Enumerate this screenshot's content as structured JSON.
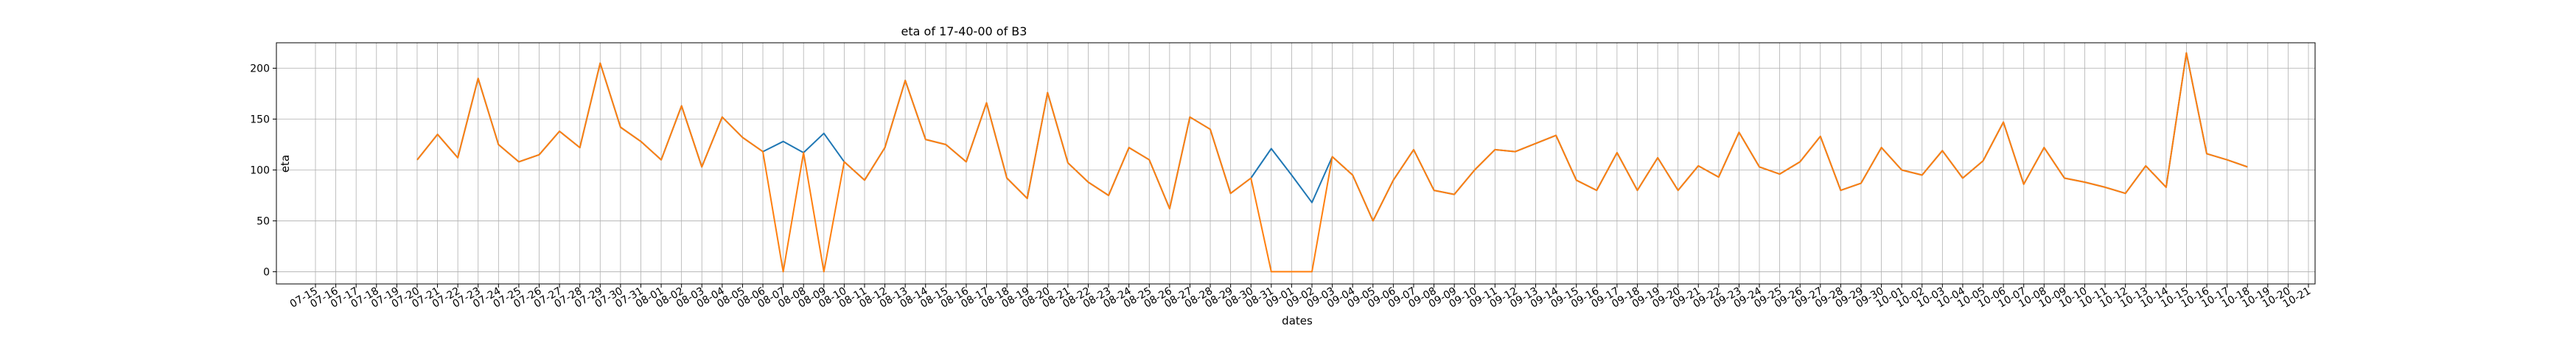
{
  "chart_data": {
    "type": "line",
    "title": "eta of 17-40-00 of B3",
    "xlabel": "dates",
    "ylabel": "eta",
    "ylim": [
      -12,
      225
    ],
    "yticks": [
      0,
      50,
      100,
      150,
      200
    ],
    "grid": true,
    "x": [
      "07-15",
      "07-16",
      "07-17",
      "07-18",
      "07-19",
      "07-20",
      "07-21",
      "07-22",
      "07-23",
      "07-24",
      "07-25",
      "07-26",
      "07-27",
      "07-28",
      "07-29",
      "07-30",
      "07-31",
      "08-01",
      "08-02",
      "08-03",
      "08-04",
      "08-05",
      "08-06",
      "08-07",
      "08-08",
      "08-09",
      "08-10",
      "08-11",
      "08-12",
      "08-13",
      "08-14",
      "08-15",
      "08-16",
      "08-17",
      "08-18",
      "08-19",
      "08-20",
      "08-21",
      "08-22",
      "08-23",
      "08-24",
      "08-25",
      "08-26",
      "08-27",
      "08-28",
      "08-29",
      "08-30",
      "08-31",
      "09-01",
      "09-02",
      "09-03",
      "09-04",
      "09-05",
      "09-06",
      "09-07",
      "09-08",
      "09-09",
      "09-10",
      "09-11",
      "09-12",
      "09-13",
      "09-14",
      "09-15",
      "09-16",
      "09-17",
      "09-18",
      "09-19",
      "09-20",
      "09-21",
      "09-22",
      "09-23",
      "09-24",
      "09-25",
      "09-26",
      "09-27",
      "09-28",
      "09-29",
      "09-30",
      "10-01",
      "10-02",
      "10-03",
      "10-04",
      "10-05",
      "10-06",
      "10-07",
      "10-08",
      "10-09",
      "10-10",
      "10-11",
      "10-12",
      "10-13",
      "10-14",
      "10-15",
      "10-16",
      "10-17",
      "10-18",
      "10-19",
      "10-20",
      "10-21"
    ],
    "series": [
      {
        "color": "#1f77b4",
        "values": [
          null,
          null,
          null,
          null,
          null,
          110,
          135,
          112,
          190,
          125,
          108,
          115,
          138,
          122,
          205,
          142,
          128,
          110,
          163,
          103,
          152,
          132,
          118,
          128,
          117,
          136,
          108,
          90,
          122,
          188,
          130,
          125,
          108,
          166,
          92,
          72,
          176,
          107,
          88,
          75,
          122,
          110,
          62,
          152,
          140,
          77,
          92,
          121,
          95,
          68,
          113,
          95,
          50,
          90,
          120,
          80,
          76,
          100,
          120,
          118,
          126,
          134,
          90,
          80,
          117,
          80,
          112,
          80,
          104,
          93,
          137,
          103,
          96,
          108,
          133,
          80,
          87,
          122,
          100,
          95,
          119,
          92,
          109,
          147,
          86,
          122,
          92,
          88,
          83,
          77,
          104,
          83,
          215,
          116,
          110,
          103,
          null,
          null,
          null
        ]
      },
      {
        "color": "#ff7f0e",
        "values": [
          null,
          null,
          null,
          null,
          null,
          110,
          135,
          112,
          190,
          125,
          108,
          115,
          138,
          122,
          205,
          142,
          128,
          110,
          163,
          103,
          152,
          132,
          118,
          0,
          117,
          0,
          108,
          90,
          122,
          188,
          130,
          125,
          108,
          166,
          92,
          72,
          176,
          107,
          88,
          75,
          122,
          110,
          62,
          152,
          140,
          77,
          92,
          0,
          0,
          0,
          113,
          95,
          50,
          90,
          120,
          80,
          76,
          100,
          120,
          118,
          126,
          134,
          90,
          80,
          117,
          80,
          112,
          80,
          104,
          93,
          137,
          103,
          96,
          108,
          133,
          80,
          87,
          122,
          100,
          95,
          119,
          92,
          109,
          147,
          86,
          122,
          92,
          88,
          83,
          77,
          104,
          83,
          215,
          116,
          110,
          103,
          null,
          null,
          null
        ]
      }
    ]
  }
}
